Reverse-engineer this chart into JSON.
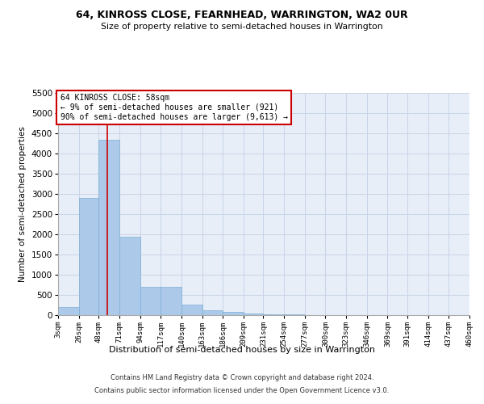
{
  "title": "64, KINROSS CLOSE, FEARNHEAD, WARRINGTON, WA2 0UR",
  "subtitle": "Size of property relative to semi-detached houses in Warrington",
  "xlabel": "Distribution of semi-detached houses by size in Warrington",
  "ylabel": "Number of semi-detached properties",
  "footer_line1": "Contains HM Land Registry data © Crown copyright and database right 2024.",
  "footer_line2": "Contains public sector information licensed under the Open Government Licence v3.0.",
  "annotation_line1": "64 KINROSS CLOSE: 58sqm",
  "annotation_line2": "← 9% of semi-detached houses are smaller (921)",
  "annotation_line3": "90% of semi-detached houses are larger (9,613) →",
  "property_size": 58,
  "bin_edges": [
    3,
    26,
    48,
    71,
    94,
    117,
    140,
    163,
    186,
    209,
    231,
    254,
    277,
    300,
    323,
    346,
    369,
    391,
    414,
    437,
    460
  ],
  "bin_labels": [
    "3sqm",
    "26sqm",
    "48sqm",
    "71sqm",
    "94sqm",
    "117sqm",
    "140sqm",
    "163sqm",
    "186sqm",
    "209sqm",
    "231sqm",
    "254sqm",
    "277sqm",
    "300sqm",
    "323sqm",
    "346sqm",
    "369sqm",
    "391sqm",
    "414sqm",
    "437sqm",
    "460sqm"
  ],
  "bar_heights": [
    200,
    2900,
    4350,
    1950,
    700,
    700,
    270,
    120,
    75,
    50,
    30,
    20,
    10,
    5,
    3,
    2,
    1,
    0,
    0,
    0
  ],
  "bar_color": "#adc9ea",
  "bar_edge_color": "#7aafd4",
  "grid_color": "#c8d4e8",
  "marker_color": "#cc0000",
  "ylim": [
    0,
    5500
  ],
  "yticks": [
    0,
    500,
    1000,
    1500,
    2000,
    2500,
    3000,
    3500,
    4000,
    4500,
    5000,
    5500
  ],
  "annotation_box_color": "#cc0000",
  "background_color": "#ffffff",
  "plot_bg_color": "#e8eef8"
}
